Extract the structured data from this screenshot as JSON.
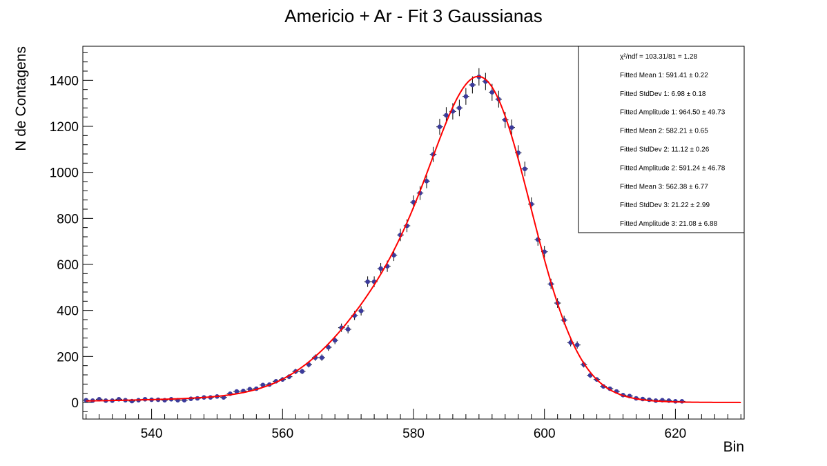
{
  "chart_data": {
    "type": "scatter",
    "title": "Americio + Ar - Fit 3 Gaussianas",
    "xlabel": "Bin",
    "ylabel": "N de Contagens",
    "xlim": [
      529.5,
      630.5
    ],
    "ylim": [
      -72,
      1548
    ],
    "x_ticks": [
      540,
      560,
      580,
      600,
      620
    ],
    "y_ticks": [
      0,
      200,
      400,
      600,
      800,
      1000,
      1200,
      1400
    ],
    "grid": false,
    "legend_position": "top-right",
    "colors": {
      "markers": "#3b3b9c",
      "fit": "#ff0000",
      "axes": "#000000"
    },
    "data": {
      "x": [
        530,
        531,
        532,
        533,
        534,
        535,
        536,
        537,
        538,
        539,
        540,
        541,
        542,
        543,
        544,
        545,
        546,
        547,
        548,
        549,
        550,
        551,
        552,
        553,
        554,
        555,
        556,
        557,
        558,
        559,
        560,
        561,
        562,
        563,
        564,
        565,
        566,
        567,
        568,
        569,
        570,
        571,
        572,
        573,
        574,
        575,
        576,
        577,
        578,
        579,
        580,
        581,
        582,
        583,
        584,
        585,
        586,
        587,
        588,
        589,
        590,
        591,
        592,
        593,
        594,
        595,
        596,
        597,
        598,
        599,
        600,
        601,
        602,
        603,
        604,
        605,
        606,
        607,
        608,
        609,
        610,
        611,
        612,
        613,
        614,
        615,
        616,
        617,
        618,
        619,
        620,
        621
      ],
      "y": [
        10,
        8,
        14,
        8,
        8,
        14,
        10,
        6,
        10,
        14,
        12,
        12,
        10,
        14,
        10,
        10,
        16,
        18,
        22,
        22,
        26,
        22,
        38,
        48,
        50,
        58,
        60,
        76,
        78,
        92,
        100,
        112,
        135,
        135,
        165,
        195,
        195,
        240,
        270,
        325,
        318,
        378,
        398,
        525,
        525,
        582,
        592,
        640,
        728,
        768,
        870,
        910,
        962,
        1078,
        1198,
        1248,
        1265,
        1280,
        1330,
        1380,
        1415,
        1395,
        1348,
        1318,
        1228,
        1195,
        1085,
        1015,
        862,
        708,
        655,
        515,
        432,
        358,
        260,
        250,
        165,
        118,
        100,
        70,
        60,
        48,
        32,
        28,
        18,
        15,
        12,
        8,
        10,
        8,
        5,
        5
      ]
    },
    "fit_params": {
      "g1": {
        "mean": 591.41,
        "sigma": 6.98,
        "amplitude": 964.5
      },
      "g2": {
        "mean": 582.21,
        "sigma": 11.12,
        "amplitude": 591.24
      },
      "g3": {
        "mean": 562.38,
        "sigma": 21.22,
        "amplitude": 21.08
      }
    },
    "fit_range": [
      530,
      630
    ],
    "stats_box": [
      {
        "label": "χ²/ndf = 103.31/81 = 1.28"
      },
      {
        "label": "Fitted Mean 1: 591.41 ± 0.22"
      },
      {
        "label": "Fitted StdDev 1: 6.98 ± 0.18"
      },
      {
        "label": "Fitted Amplitude 1: 964.50 ± 49.73"
      },
      {
        "label": "Fitted Mean 2: 582.21 ± 0.65"
      },
      {
        "label": "Fitted StdDev 2: 11.12 ± 0.26"
      },
      {
        "label": "Fitted Amplitude 2: 591.24 ± 46.78"
      },
      {
        "label": "Fitted Mean 3: 562.38 ± 6.77"
      },
      {
        "label": "Fitted StdDev 3: 21.22 ± 2.99"
      },
      {
        "label": "Fitted Amplitude 3: 21.08 ± 6.88"
      }
    ]
  }
}
